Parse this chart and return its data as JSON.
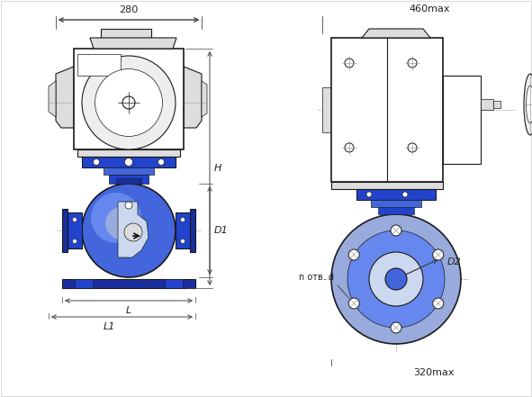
{
  "bg_color": "#ffffff",
  "lc": "#1a1a1a",
  "lc_dim": "#444444",
  "blue1": "#1a2e9e",
  "blue2": "#2244cc",
  "blue3": "#4466dd",
  "blue4": "#6688ee",
  "blue5": "#99aadd",
  "blue6": "#bbccee",
  "blue_light": "#ccd8f0",
  "gray1": "#888888",
  "gray2": "#bbbbbb",
  "gray3": "#dddddd",
  "gray4": "#eeeeee",
  "white": "#ffffff",
  "dim_280": "280",
  "dim_460": "460max",
  "dim_H": "H",
  "dim_D1": "D1",
  "dim_L": "L",
  "dim_L1": "L1",
  "dim_D2": "D2",
  "dim_notv_d": "n отв. d",
  "dim_320": "320max"
}
